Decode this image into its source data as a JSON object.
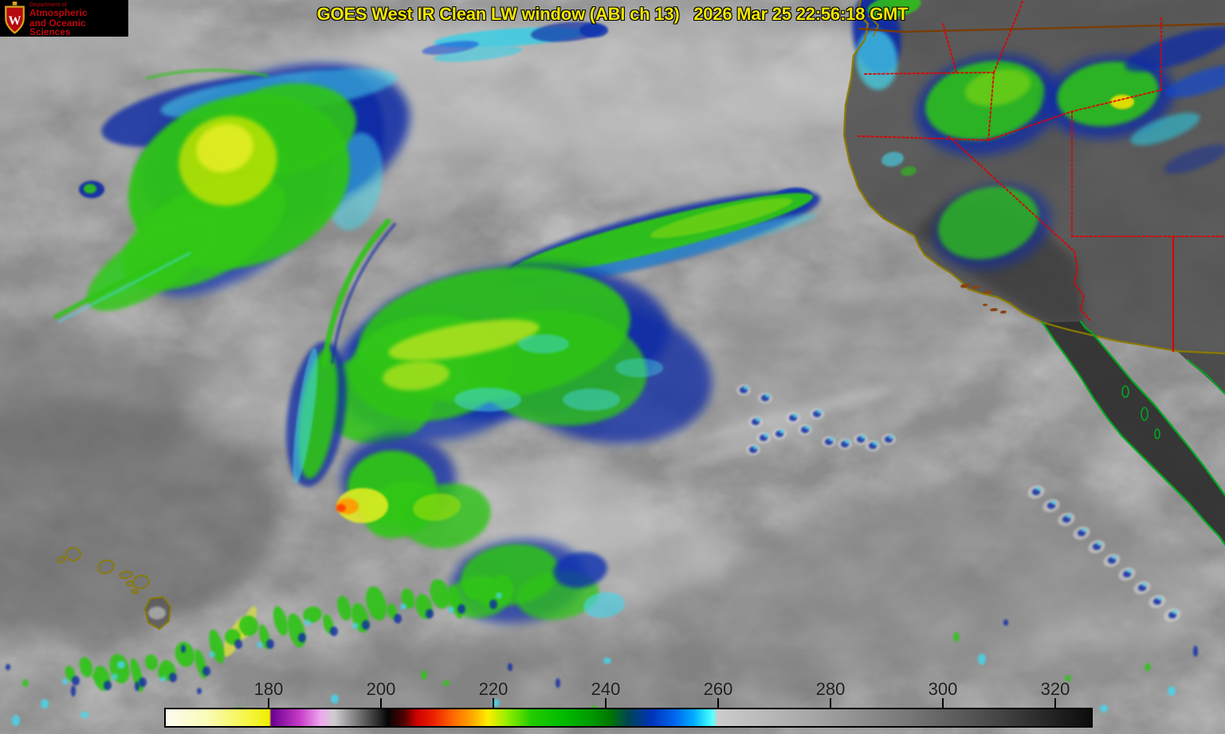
{
  "title": {
    "text": "GOES West IR Clean LW window (ABI ch 13)   2026 Mar 25 22:56:18 GMT",
    "color": "#f2e600"
  },
  "logo": {
    "line1": "Department of",
    "line2": "Atmospheric",
    "line3": "and Oceanic Sciences",
    "crest_letter": "W",
    "text_color": "#c5050c",
    "crest_red": "#b50a10",
    "crest_gold": "#d8a21c",
    "bg": "#000000"
  },
  "colorbar": {
    "tick_values": [
      180,
      200,
      220,
      240,
      260,
      280,
      300,
      320
    ],
    "label_color": "#1e1e1e",
    "border_color": "#000000",
    "gradient": [
      [
        0.0,
        "#fcfcf0"
      ],
      [
        0.045,
        "#fafab8"
      ],
      [
        0.09,
        "#f6f640"
      ],
      [
        0.112,
        "#eeee00"
      ],
      [
        0.114,
        "#6a0090"
      ],
      [
        0.145,
        "#c83cc8"
      ],
      [
        0.168,
        "#eeaaee"
      ],
      [
        0.182,
        "#d0cdd0"
      ],
      [
        0.232,
        "#222222"
      ],
      [
        0.24,
        "#050505"
      ],
      [
        0.258,
        "#550000"
      ],
      [
        0.271,
        "#cc0000"
      ],
      [
        0.29,
        "#ee2200"
      ],
      [
        0.31,
        "#ff6600"
      ],
      [
        0.332,
        "#ffaa00"
      ],
      [
        0.348,
        "#ffee00"
      ],
      [
        0.368,
        "#99ee00"
      ],
      [
        0.395,
        "#22cc00"
      ],
      [
        0.43,
        "#00bb00"
      ],
      [
        0.46,
        "#009900"
      ],
      [
        0.48,
        "#007700"
      ],
      [
        0.5,
        "#004455"
      ],
      [
        0.525,
        "#0033bb"
      ],
      [
        0.55,
        "#0066ee"
      ],
      [
        0.57,
        "#00aaff"
      ],
      [
        0.585,
        "#33eeff"
      ],
      [
        0.592,
        "#66ffff"
      ],
      [
        0.596,
        "#cccccc"
      ],
      [
        0.7,
        "#a6a6a6"
      ],
      [
        0.8,
        "#787878"
      ],
      [
        0.9,
        "#454545"
      ],
      [
        0.965,
        "#1f1f1f"
      ],
      [
        1.0,
        "#0c0c0c"
      ]
    ]
  },
  "map_colors": {
    "us_coast": "#8a7a00",
    "mexico_coast": "#00a81e",
    "state_border": "#e00000",
    "canada_border": "#7a3c00",
    "island": "#8a4210"
  }
}
